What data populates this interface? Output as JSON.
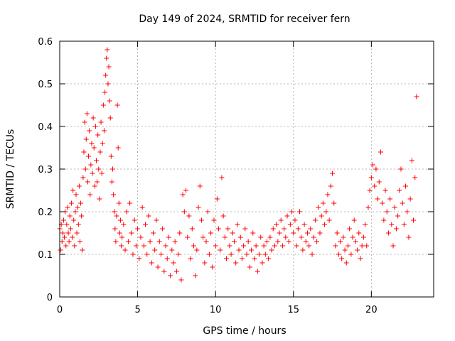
{
  "chart_data": {
    "type": "scatter",
    "title": "Day 149 of 2024, SRMTID for receiver fern",
    "xlabel": "GPS time / hours",
    "ylabel": "SRMTID / TECUs",
    "xlim": [
      0,
      24
    ],
    "ylim": [
      0,
      0.6
    ],
    "x_ticks": [
      0,
      5,
      10,
      15,
      20
    ],
    "x_tick_labels": [
      "0",
      "5",
      "10",
      "15",
      "20"
    ],
    "y_ticks": [
      0,
      0.1,
      0.2,
      0.3,
      0.4,
      0.5,
      0.6
    ],
    "y_tick_labels": [
      "0",
      "0.1",
      "0.2",
      "0.3",
      "0.4",
      "0.5",
      "0.6"
    ],
    "grid": true,
    "marker": "+",
    "color": "#ff0000",
    "series": [
      {
        "name": "SRMTID",
        "points": [
          [
            0.0,
            0.16
          ],
          [
            0.05,
            0.11
          ],
          [
            0.1,
            0.17
          ],
          [
            0.15,
            0.13
          ],
          [
            0.2,
            0.15
          ],
          [
            0.25,
            0.18
          ],
          [
            0.3,
            0.14
          ],
          [
            0.35,
            0.2
          ],
          [
            0.4,
            0.12
          ],
          [
            0.45,
            0.17
          ],
          [
            0.5,
            0.21
          ],
          [
            0.55,
            0.15
          ],
          [
            0.6,
            0.13
          ],
          [
            0.65,
            0.19
          ],
          [
            0.7,
            0.16
          ],
          [
            0.75,
            0.22
          ],
          [
            0.8,
            0.14
          ],
          [
            0.85,
            0.25
          ],
          [
            0.9,
            0.18
          ],
          [
            0.95,
            0.12
          ],
          [
            1.0,
            0.2
          ],
          [
            1.05,
            0.24
          ],
          [
            1.1,
            0.15
          ],
          [
            1.15,
            0.21
          ],
          [
            1.2,
            0.17
          ],
          [
            1.25,
            0.26
          ],
          [
            1.3,
            0.13
          ],
          [
            1.35,
            0.22
          ],
          [
            1.4,
            0.19
          ],
          [
            1.45,
            0.11
          ],
          [
            1.5,
            0.28
          ],
          [
            1.55,
            0.34
          ],
          [
            1.6,
            0.41
          ],
          [
            1.65,
            0.3
          ],
          [
            1.7,
            0.37
          ],
          [
            1.75,
            0.43
          ],
          [
            1.8,
            0.27
          ],
          [
            1.85,
            0.33
          ],
          [
            1.9,
            0.39
          ],
          [
            1.95,
            0.24
          ],
          [
            2.0,
            0.31
          ],
          [
            2.05,
            0.36
          ],
          [
            2.1,
            0.29
          ],
          [
            2.15,
            0.42
          ],
          [
            2.2,
            0.35
          ],
          [
            2.25,
            0.26
          ],
          [
            2.3,
            0.4
          ],
          [
            2.35,
            0.32
          ],
          [
            2.4,
            0.27
          ],
          [
            2.45,
            0.38
          ],
          [
            2.5,
            0.3
          ],
          [
            2.55,
            0.23
          ],
          [
            2.6,
            0.34
          ],
          [
            2.65,
            0.41
          ],
          [
            2.7,
            0.29
          ],
          [
            2.75,
            0.36
          ],
          [
            2.8,
            0.45
          ],
          [
            2.85,
            0.39
          ],
          [
            2.9,
            0.48
          ],
          [
            2.95,
            0.52
          ],
          [
            3.0,
            0.56
          ],
          [
            3.05,
            0.58
          ],
          [
            3.1,
            0.5
          ],
          [
            3.15,
            0.54
          ],
          [
            3.2,
            0.46
          ],
          [
            3.25,
            0.42
          ],
          [
            3.3,
            0.33
          ],
          [
            3.35,
            0.27
          ],
          [
            3.4,
            0.3
          ],
          [
            3.45,
            0.24
          ],
          [
            3.5,
            0.2
          ],
          [
            3.55,
            0.16
          ],
          [
            3.6,
            0.13
          ],
          [
            3.65,
            0.19
          ],
          [
            3.7,
            0.45
          ],
          [
            3.75,
            0.35
          ],
          [
            3.8,
            0.22
          ],
          [
            3.85,
            0.15
          ],
          [
            3.9,
            0.18
          ],
          [
            3.95,
            0.12
          ],
          [
            4.0,
            0.14
          ],
          [
            4.1,
            0.17
          ],
          [
            4.2,
            0.11
          ],
          [
            4.3,
            0.2
          ],
          [
            4.4,
            0.13
          ],
          [
            4.5,
            0.22
          ],
          [
            4.6,
            0.15
          ],
          [
            4.7,
            0.1
          ],
          [
            4.8,
            0.18
          ],
          [
            4.9,
            0.12
          ],
          [
            5.0,
            0.16
          ],
          [
            5.1,
            0.09
          ],
          [
            5.2,
            0.14
          ],
          [
            5.3,
            0.21
          ],
          [
            5.4,
            0.12
          ],
          [
            5.5,
            0.17
          ],
          [
            5.6,
            0.1
          ],
          [
            5.7,
            0.19
          ],
          [
            5.8,
            0.13
          ],
          [
            5.9,
            0.08
          ],
          [
            6.0,
            0.15
          ],
          [
            6.1,
            0.11
          ],
          [
            6.2,
            0.18
          ],
          [
            6.3,
            0.07
          ],
          [
            6.4,
            0.13
          ],
          [
            6.5,
            0.1
          ],
          [
            6.6,
            0.16
          ],
          [
            6.7,
            0.06
          ],
          [
            6.8,
            0.12
          ],
          [
            6.9,
            0.09
          ],
          [
            7.0,
            0.14
          ],
          [
            7.1,
            0.05
          ],
          [
            7.2,
            0.11
          ],
          [
            7.3,
            0.08
          ],
          [
            7.4,
            0.13
          ],
          [
            7.5,
            0.06
          ],
          [
            7.6,
            0.1
          ],
          [
            7.7,
            0.15
          ],
          [
            7.8,
            0.04
          ],
          [
            7.9,
            0.24
          ],
          [
            8.0,
            0.2
          ],
          [
            8.1,
            0.25
          ],
          [
            8.2,
            0.14
          ],
          [
            8.3,
            0.19
          ],
          [
            8.4,
            0.09
          ],
          [
            8.5,
            0.16
          ],
          [
            8.6,
            0.12
          ],
          [
            8.7,
            0.05
          ],
          [
            8.8,
            0.11
          ],
          [
            8.9,
            0.21
          ],
          [
            9.0,
            0.26
          ],
          [
            9.1,
            0.18
          ],
          [
            9.2,
            0.14
          ],
          [
            9.3,
            0.08
          ],
          [
            9.4,
            0.13
          ],
          [
            9.5,
            0.2
          ],
          [
            9.6,
            0.1
          ],
          [
            9.7,
            0.15
          ],
          [
            9.8,
            0.07
          ],
          [
            9.9,
            0.18
          ],
          [
            10.0,
            0.12
          ],
          [
            10.1,
            0.23
          ],
          [
            10.2,
            0.16
          ],
          [
            10.3,
            0.11
          ],
          [
            10.4,
            0.28
          ],
          [
            10.5,
            0.19
          ],
          [
            10.6,
            0.14
          ],
          [
            10.7,
            0.09
          ],
          [
            10.8,
            0.16
          ],
          [
            10.9,
            0.12
          ],
          [
            11.0,
            0.1
          ],
          [
            11.1,
            0.15
          ],
          [
            11.2,
            0.13
          ],
          [
            11.3,
            0.08
          ],
          [
            11.4,
            0.17
          ],
          [
            11.5,
            0.11
          ],
          [
            11.6,
            0.14
          ],
          [
            11.7,
            0.09
          ],
          [
            11.8,
            0.12
          ],
          [
            11.9,
            0.16
          ],
          [
            12.0,
            0.1
          ],
          [
            12.1,
            0.13
          ],
          [
            12.2,
            0.07
          ],
          [
            12.3,
            0.11
          ],
          [
            12.4,
            0.15
          ],
          [
            12.5,
            0.09
          ],
          [
            12.6,
            0.12
          ],
          [
            12.7,
            0.06
          ],
          [
            12.8,
            0.1
          ],
          [
            12.9,
            0.14
          ],
          [
            13.0,
            0.08
          ],
          [
            13.1,
            0.12
          ],
          [
            13.2,
            0.1
          ],
          [
            13.3,
            0.13
          ],
          [
            13.4,
            0.09
          ],
          [
            13.5,
            0.14
          ],
          [
            13.6,
            0.11
          ],
          [
            13.7,
            0.16
          ],
          [
            13.8,
            0.12
          ],
          [
            13.9,
            0.17
          ],
          [
            14.0,
            0.13
          ],
          [
            14.1,
            0.15
          ],
          [
            14.2,
            0.18
          ],
          [
            14.3,
            0.12
          ],
          [
            14.4,
            0.16
          ],
          [
            14.5,
            0.14
          ],
          [
            14.6,
            0.19
          ],
          [
            14.7,
            0.13
          ],
          [
            14.8,
            0.17
          ],
          [
            14.9,
            0.2
          ],
          [
            15.0,
            0.15
          ],
          [
            15.1,
            0.18
          ],
          [
            15.2,
            0.12
          ],
          [
            15.3,
            0.16
          ],
          [
            15.4,
            0.2
          ],
          [
            15.5,
            0.14
          ],
          [
            15.6,
            0.11
          ],
          [
            15.7,
            0.17
          ],
          [
            15.8,
            0.13
          ],
          [
            15.9,
            0.15
          ],
          [
            16.0,
            0.12
          ],
          [
            16.1,
            0.16
          ],
          [
            16.2,
            0.1
          ],
          [
            16.3,
            0.14
          ],
          [
            16.4,
            0.18
          ],
          [
            16.5,
            0.13
          ],
          [
            16.6,
            0.21
          ],
          [
            16.7,
            0.15
          ],
          [
            16.8,
            0.19
          ],
          [
            16.9,
            0.22
          ],
          [
            17.0,
            0.17
          ],
          [
            17.1,
            0.2
          ],
          [
            17.2,
            0.24
          ],
          [
            17.3,
            0.18
          ],
          [
            17.4,
            0.26
          ],
          [
            17.5,
            0.29
          ],
          [
            17.6,
            0.22
          ],
          [
            17.7,
            0.12
          ],
          [
            17.8,
            0.15
          ],
          [
            17.9,
            0.1
          ],
          [
            18.0,
            0.13
          ],
          [
            18.1,
            0.09
          ],
          [
            18.2,
            0.14
          ],
          [
            18.3,
            0.11
          ],
          [
            18.4,
            0.08
          ],
          [
            18.5,
            0.12
          ],
          [
            18.6,
            0.16
          ],
          [
            18.7,
            0.1
          ],
          [
            18.8,
            0.14
          ],
          [
            18.9,
            0.18
          ],
          [
            19.0,
            0.13
          ],
          [
            19.1,
            0.11
          ],
          [
            19.2,
            0.15
          ],
          [
            19.3,
            0.09
          ],
          [
            19.4,
            0.12
          ],
          [
            19.5,
            0.14
          ],
          [
            19.6,
            0.17
          ],
          [
            19.7,
            0.12
          ],
          [
            19.8,
            0.21
          ],
          [
            19.9,
            0.25
          ],
          [
            20.0,
            0.28
          ],
          [
            20.1,
            0.31
          ],
          [
            20.2,
            0.26
          ],
          [
            20.3,
            0.3
          ],
          [
            20.4,
            0.23
          ],
          [
            20.5,
            0.27
          ],
          [
            20.6,
            0.34
          ],
          [
            20.7,
            0.22
          ],
          [
            20.8,
            0.18
          ],
          [
            20.9,
            0.25
          ],
          [
            21.0,
            0.2
          ],
          [
            21.1,
            0.15
          ],
          [
            21.2,
            0.23
          ],
          [
            21.3,
            0.17
          ],
          [
            21.4,
            0.12
          ],
          [
            21.5,
            0.21
          ],
          [
            21.6,
            0.16
          ],
          [
            21.7,
            0.19
          ],
          [
            21.8,
            0.25
          ],
          [
            21.9,
            0.3
          ],
          [
            22.0,
            0.22
          ],
          [
            22.1,
            0.17
          ],
          [
            22.2,
            0.26
          ],
          [
            22.3,
            0.2
          ],
          [
            22.4,
            0.14
          ],
          [
            22.5,
            0.23
          ],
          [
            22.6,
            0.32
          ],
          [
            22.7,
            0.18
          ],
          [
            22.8,
            0.28
          ],
          [
            22.9,
            0.47
          ]
        ]
      }
    ]
  }
}
